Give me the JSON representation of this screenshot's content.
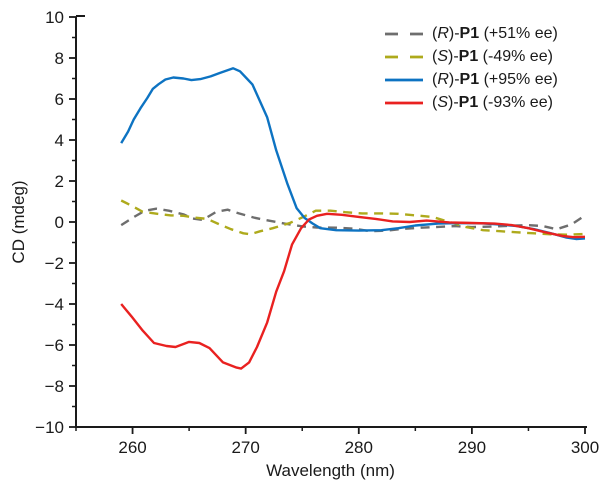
{
  "figure": {
    "background": "#ffffff",
    "axis_color": "#1a1a1a"
  },
  "chart_data": {
    "type": "line",
    "title": "",
    "xlabel": "Wavelength (nm)",
    "ylabel": "CD (mdeg)",
    "xlim": [
      255,
      300
    ],
    "ylim": [
      -10,
      10
    ],
    "x_major_ticks": [
      260,
      270,
      280,
      290,
      300
    ],
    "x_minor_ticks": [
      255,
      265,
      275,
      285,
      295
    ],
    "y_major_ticks": [
      -10,
      -8,
      -6,
      -4,
      -2,
      0,
      2,
      4,
      6,
      8,
      10
    ],
    "y_minor_ticks": [
      -9,
      -7,
      -5,
      -3,
      -1,
      1,
      3,
      5,
      7,
      9
    ],
    "grid": false,
    "legend_position": "top-right",
    "series": [
      {
        "label": "(R)-P1 (+51% ee)",
        "stereo": "R",
        "name": "P1",
        "ee": "(+51% ee)",
        "color": "#6e6e6e",
        "dash": true,
        "points": [
          [
            259,
            -0.15
          ],
          [
            260.2,
            0.27
          ],
          [
            261.1,
            0.55
          ],
          [
            262.1,
            0.65
          ],
          [
            263.2,
            0.55
          ],
          [
            264.5,
            0.37
          ],
          [
            265.3,
            0.17
          ],
          [
            266.2,
            0.1
          ],
          [
            267.4,
            0.5
          ],
          [
            268.4,
            0.6
          ],
          [
            269.4,
            0.42
          ],
          [
            270.7,
            0.22
          ],
          [
            271.5,
            0.12
          ],
          [
            272.7,
            0.0
          ],
          [
            273.9,
            -0.12
          ],
          [
            275.1,
            -0.22
          ],
          [
            276.3,
            -0.27
          ],
          [
            278,
            -0.28
          ],
          [
            279.5,
            -0.32
          ],
          [
            281,
            -0.45
          ],
          [
            282.5,
            -0.42
          ],
          [
            284,
            -0.33
          ],
          [
            285.5,
            -0.28
          ],
          [
            287,
            -0.24
          ],
          [
            288.5,
            -0.2
          ],
          [
            290,
            -0.25
          ],
          [
            292,
            -0.22
          ],
          [
            293.5,
            -0.18
          ],
          [
            295,
            -0.15
          ],
          [
            296.3,
            -0.2
          ],
          [
            297.5,
            -0.35
          ],
          [
            298.8,
            -0.12
          ],
          [
            300,
            0.32
          ]
        ]
      },
      {
        "label": "(S)-P1 (-49% ee)",
        "stereo": "S",
        "name": "P1",
        "ee": "(-49% ee)",
        "color": "#aeaa1c",
        "dash": true,
        "points": [
          [
            259,
            1.05
          ],
          [
            259.9,
            0.8
          ],
          [
            260.9,
            0.5
          ],
          [
            262.2,
            0.4
          ],
          [
            263.4,
            0.32
          ],
          [
            264.5,
            0.3
          ],
          [
            265.4,
            0.22
          ],
          [
            266.6,
            0.15
          ],
          [
            267.7,
            -0.12
          ],
          [
            268.7,
            -0.35
          ],
          [
            269.8,
            -0.55
          ],
          [
            270.4,
            -0.6
          ],
          [
            271.3,
            -0.45
          ],
          [
            272.4,
            -0.3
          ],
          [
            273.9,
            -0.05
          ],
          [
            275.1,
            0.25
          ],
          [
            276.2,
            0.55
          ],
          [
            277.5,
            0.55
          ],
          [
            278.8,
            0.48
          ],
          [
            280.3,
            0.42
          ],
          [
            282,
            0.42
          ],
          [
            283.5,
            0.4
          ],
          [
            284.8,
            0.33
          ],
          [
            286.5,
            0.25
          ],
          [
            288,
            0.0
          ],
          [
            289.5,
            -0.25
          ],
          [
            291,
            -0.4
          ],
          [
            292.5,
            -0.45
          ],
          [
            294,
            -0.5
          ],
          [
            295.5,
            -0.55
          ],
          [
            297,
            -0.6
          ],
          [
            298.5,
            -0.62
          ],
          [
            300,
            -0.58
          ]
        ]
      },
      {
        "label": "(R)-P1 (+95% ee)",
        "stereo": "R",
        "name": "P1",
        "ee": "(+95% ee)",
        "color": "#0d73c2",
        "dash": false,
        "points": [
          [
            259,
            3.85
          ],
          [
            259.6,
            4.4
          ],
          [
            260.1,
            5.0
          ],
          [
            260.7,
            5.55
          ],
          [
            261.3,
            6.05
          ],
          [
            261.8,
            6.5
          ],
          [
            262.3,
            6.72
          ],
          [
            262.9,
            6.95
          ],
          [
            263.6,
            7.05
          ],
          [
            264.5,
            7.0
          ],
          [
            265.2,
            6.92
          ],
          [
            266,
            6.97
          ],
          [
            266.9,
            7.1
          ],
          [
            267.7,
            7.27
          ],
          [
            268.9,
            7.5
          ],
          [
            269.5,
            7.35
          ],
          [
            270.1,
            7.0
          ],
          [
            270.6,
            6.7
          ],
          [
            271.9,
            5.1
          ],
          [
            272.7,
            3.5
          ],
          [
            273.7,
            1.85
          ],
          [
            274.5,
            0.68
          ],
          [
            275.2,
            0.2
          ],
          [
            275.9,
            -0.07
          ],
          [
            276.6,
            -0.3
          ],
          [
            278,
            -0.4
          ],
          [
            280,
            -0.42
          ],
          [
            282,
            -0.4
          ],
          [
            283.5,
            -0.3
          ],
          [
            285,
            -0.17
          ],
          [
            287,
            -0.08
          ],
          [
            289,
            -0.05
          ],
          [
            291,
            -0.07
          ],
          [
            292.5,
            -0.12
          ],
          [
            294,
            -0.2
          ],
          [
            295.5,
            -0.35
          ],
          [
            297,
            -0.55
          ],
          [
            298.3,
            -0.75
          ],
          [
            299.2,
            -0.83
          ],
          [
            300,
            -0.8
          ]
        ]
      },
      {
        "label": "(S)-P1 (-93% ee)",
        "stereo": "S",
        "name": "P1",
        "ee": "(-93% ee)",
        "color": "#e92120",
        "dash": false,
        "points": [
          [
            259,
            -4.0
          ],
          [
            259.9,
            -4.6
          ],
          [
            260.9,
            -5.3
          ],
          [
            261.9,
            -5.9
          ],
          [
            263,
            -6.05
          ],
          [
            263.8,
            -6.1
          ],
          [
            264.5,
            -5.95
          ],
          [
            265,
            -5.85
          ],
          [
            265.9,
            -5.9
          ],
          [
            266.8,
            -6.15
          ],
          [
            268,
            -6.85
          ],
          [
            269.2,
            -7.1
          ],
          [
            269.6,
            -7.15
          ],
          [
            270.3,
            -6.85
          ],
          [
            271,
            -6.1
          ],
          [
            271.9,
            -4.9
          ],
          [
            272.7,
            -3.4
          ],
          [
            273.4,
            -2.4
          ],
          [
            274.1,
            -1.1
          ],
          [
            274.9,
            -0.3
          ],
          [
            275.6,
            0.12
          ],
          [
            276.3,
            0.3
          ],
          [
            277.2,
            0.4
          ],
          [
            278.5,
            0.35
          ],
          [
            280,
            0.25
          ],
          [
            281.5,
            0.15
          ],
          [
            283,
            0.03
          ],
          [
            284.5,
            0.0
          ],
          [
            286,
            0.07
          ],
          [
            288,
            -0.02
          ],
          [
            290,
            -0.05
          ],
          [
            292,
            -0.08
          ],
          [
            293.5,
            -0.15
          ],
          [
            295,
            -0.3
          ],
          [
            296.5,
            -0.5
          ],
          [
            298,
            -0.68
          ],
          [
            299,
            -0.74
          ],
          [
            300,
            -0.72
          ]
        ]
      }
    ]
  }
}
